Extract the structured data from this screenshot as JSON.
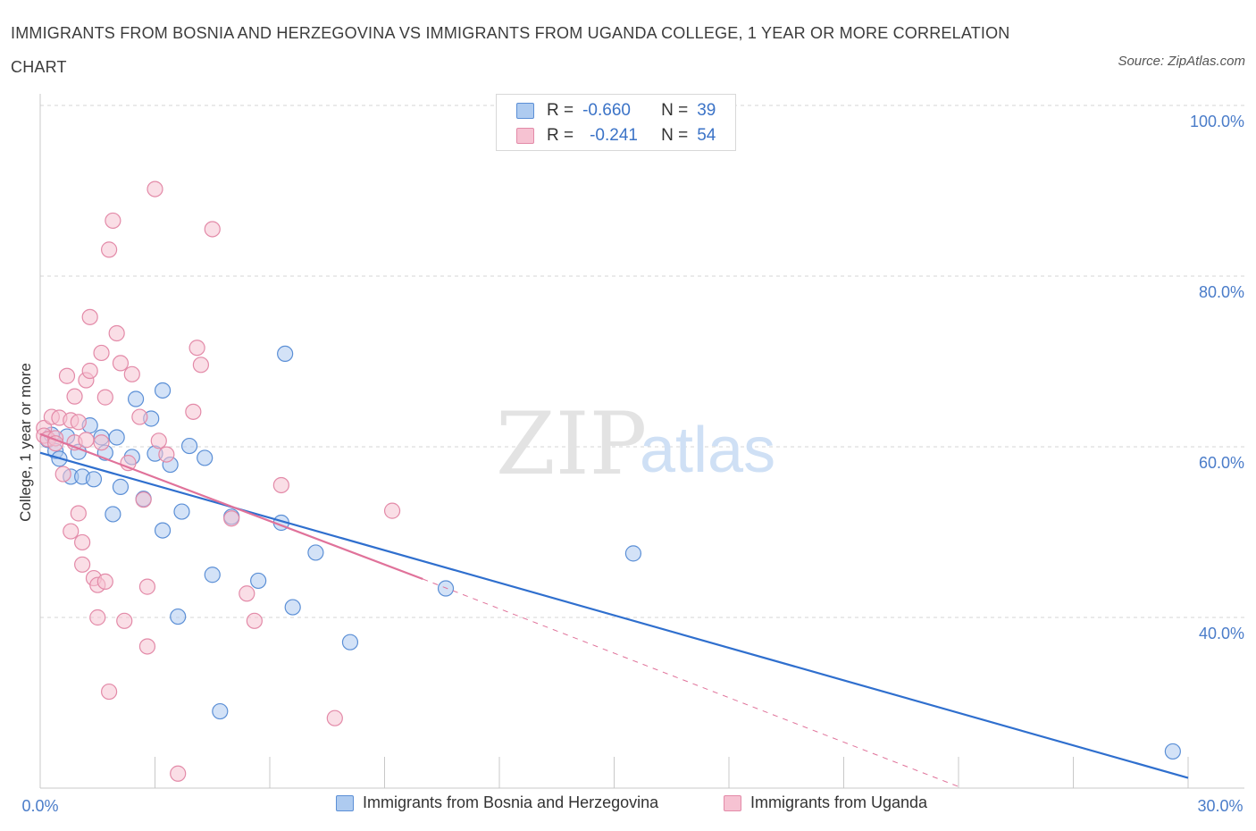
{
  "title": "IMMIGRANTS FROM BOSNIA AND HERZEGOVINA VS IMMIGRANTS FROM UGANDA COLLEGE, 1 YEAR OR MORE CORRELATION CHART",
  "source": "Source: ZipAtlas.com",
  "watermark": {
    "zip": "ZIP",
    "atlas": "atlas"
  },
  "legend": {
    "rows": [
      {
        "r_label": "R =",
        "r_value": "-0.660",
        "n_label": "N =",
        "n_value": "39"
      },
      {
        "r_label": "R =",
        "r_value": "-0.241",
        "n_label": "N =",
        "n_value": "54"
      }
    ]
  },
  "colors": {
    "blue_fill": "#aecbf0",
    "blue_stroke": "#5b8fd6",
    "blue_line": "#2f6fce",
    "pink_fill": "#f6c2d2",
    "pink_stroke": "#e38aa8",
    "pink_line": "#e0729a",
    "grid": "#d6d6d6",
    "axis_text": "#4a7cc9"
  },
  "chart_data": {
    "type": "scatter",
    "title": "IMMIGRANTS FROM BOSNIA AND HERZEGOVINA VS IMMIGRANTS FROM UGANDA COLLEGE, 1 YEAR OR MORE CORRELATION CHART",
    "xlabel": "",
    "ylabel": "College, 1 year or more",
    "xlim": [
      0,
      30
    ],
    "ylim": [
      20,
      100
    ],
    "x_ticks": [
      "0.0%",
      "30.0%"
    ],
    "y_ticks": [
      "40.0%",
      "60.0%",
      "80.0%",
      "100.0%"
    ],
    "grid": true,
    "legend_position": "top-center",
    "series": [
      {
        "name": "Immigrants from Bosnia and Herzegovina",
        "color": "#5b8fd6",
        "points": [
          [
            0.2,
            60.8
          ],
          [
            0.3,
            61.4
          ],
          [
            0.4,
            59.5
          ],
          [
            0.5,
            58.6
          ],
          [
            0.7,
            61.2
          ],
          [
            0.8,
            56.5
          ],
          [
            1.0,
            59.4
          ],
          [
            1.1,
            56.5
          ],
          [
            1.3,
            62.5
          ],
          [
            1.4,
            56.2
          ],
          [
            1.6,
            61.1
          ],
          [
            1.7,
            59.3
          ],
          [
            1.9,
            52.1
          ],
          [
            2.0,
            61.1
          ],
          [
            2.1,
            55.3
          ],
          [
            2.4,
            58.8
          ],
          [
            2.5,
            65.6
          ],
          [
            2.7,
            53.9
          ],
          [
            2.9,
            63.3
          ],
          [
            3.0,
            59.2
          ],
          [
            3.2,
            50.2
          ],
          [
            3.2,
            66.6
          ],
          [
            3.4,
            57.9
          ],
          [
            3.6,
            40.1
          ],
          [
            3.7,
            52.4
          ],
          [
            3.9,
            60.1
          ],
          [
            4.3,
            58.7
          ],
          [
            4.5,
            45.0
          ],
          [
            4.7,
            29.0
          ],
          [
            5.0,
            51.8
          ],
          [
            5.7,
            44.3
          ],
          [
            6.3,
            51.1
          ],
          [
            6.4,
            70.9
          ],
          [
            6.6,
            41.2
          ],
          [
            7.2,
            47.6
          ],
          [
            8.1,
            37.1
          ],
          [
            10.6,
            43.4
          ],
          [
            15.5,
            47.5
          ],
          [
            29.6,
            24.3
          ]
        ]
      },
      {
        "name": "Immigrants from Uganda",
        "color": "#e38aa8",
        "points": [
          [
            0.1,
            62.2
          ],
          [
            0.1,
            61.3
          ],
          [
            0.2,
            60.9
          ],
          [
            0.3,
            63.5
          ],
          [
            0.4,
            61.0
          ],
          [
            0.5,
            63.4
          ],
          [
            0.6,
            56.8
          ],
          [
            0.7,
            68.3
          ],
          [
            0.8,
            63.1
          ],
          [
            0.8,
            50.1
          ],
          [
            0.9,
            65.9
          ],
          [
            0.9,
            60.5
          ],
          [
            1.0,
            52.2
          ],
          [
            1.0,
            62.9
          ],
          [
            1.1,
            46.2
          ],
          [
            1.1,
            48.8
          ],
          [
            1.2,
            67.8
          ],
          [
            1.3,
            68.9
          ],
          [
            1.3,
            75.2
          ],
          [
            1.4,
            44.6
          ],
          [
            1.5,
            43.8
          ],
          [
            1.5,
            40.0
          ],
          [
            1.6,
            71.0
          ],
          [
            1.6,
            60.5
          ],
          [
            1.7,
            44.2
          ],
          [
            1.7,
            65.8
          ],
          [
            1.8,
            83.1
          ],
          [
            1.8,
            31.3
          ],
          [
            1.9,
            86.5
          ],
          [
            2.0,
            73.3
          ],
          [
            2.1,
            69.8
          ],
          [
            2.2,
            39.6
          ],
          [
            2.3,
            58.1
          ],
          [
            2.4,
            68.5
          ],
          [
            2.6,
            63.5
          ],
          [
            2.8,
            43.6
          ],
          [
            2.8,
            36.6
          ],
          [
            3.0,
            90.2
          ],
          [
            3.1,
            60.7
          ],
          [
            3.3,
            59.1
          ],
          [
            3.6,
            21.7
          ],
          [
            4.0,
            64.1
          ],
          [
            4.1,
            71.6
          ],
          [
            4.2,
            69.6
          ],
          [
            4.5,
            85.5
          ],
          [
            5.0,
            51.6
          ],
          [
            5.4,
            42.8
          ],
          [
            5.6,
            39.6
          ],
          [
            6.3,
            55.5
          ],
          [
            7.7,
            28.2
          ],
          [
            9.2,
            52.5
          ],
          [
            2.7,
            53.8
          ],
          [
            1.2,
            60.8
          ],
          [
            0.4,
            60.4
          ]
        ]
      }
    ],
    "trendlines": [
      {
        "series": "Immigrants from Bosnia and Herzegovina",
        "x": [
          0,
          30
        ],
        "y": [
          59.3,
          21.2
        ],
        "style": "solid"
      },
      {
        "series": "Immigrants from Uganda",
        "x": [
          0,
          10.0
        ],
        "y": [
          61.5,
          44.5
        ],
        "style": "solid"
      },
      {
        "series": "Immigrants from Uganda",
        "x": [
          10.0,
          24.1
        ],
        "y": [
          44.5,
          20.0
        ],
        "style": "dashed"
      }
    ]
  },
  "bottom_legend": {
    "blue_label": "Immigrants from Bosnia and Herzegovina",
    "pink_label": "Immigrants from Uganda"
  }
}
